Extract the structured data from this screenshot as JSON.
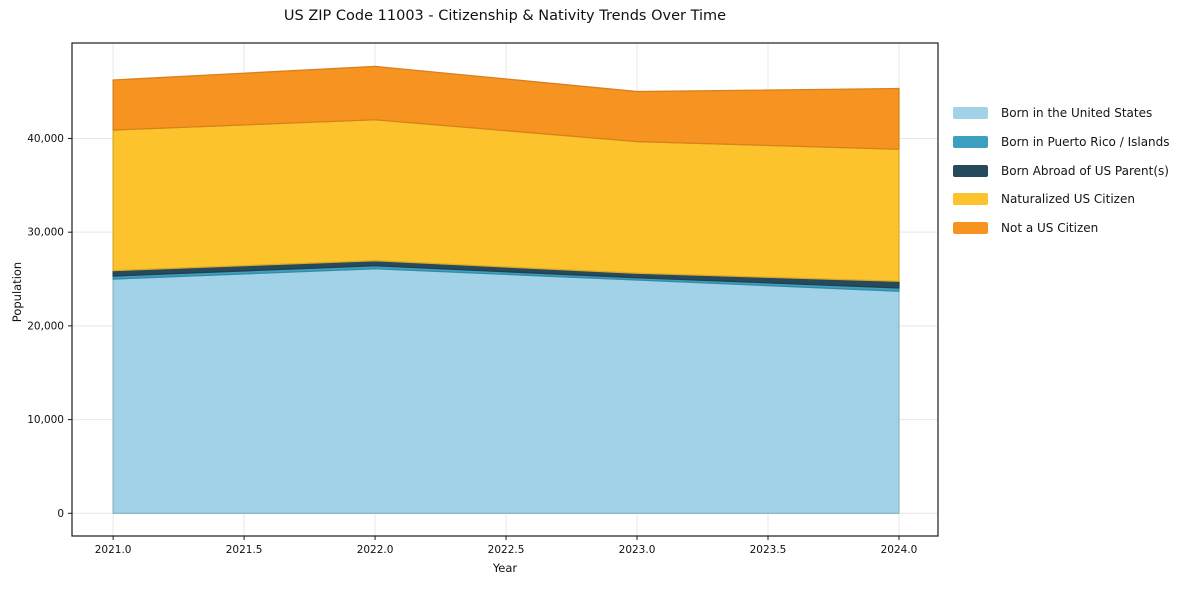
{
  "figure": {
    "background_color": "#ffffff",
    "spine_color": "#1c1c1c",
    "grid_color": "#e7e7e7",
    "text_color": "#111111"
  },
  "chart_data": {
    "type": "area",
    "stacked": true,
    "title": "US ZIP Code 11003 - Citizenship & Nativity Trends Over Time",
    "xlabel": "Year",
    "ylabel": "Population",
    "x": [
      2021,
      2022,
      2023,
      2024
    ],
    "series": [
      {
        "name": "Born in the United States",
        "color": "#a2d2e7",
        "values": [
          25000,
          26100,
          24900,
          23700
        ]
      },
      {
        "name": "Born in Puerto Rico / Islands",
        "color": "#3da0bf",
        "values": [
          320,
          320,
          240,
          350
        ]
      },
      {
        "name": "Born Abroad of US Parent(s)",
        "color": "#26495c",
        "values": [
          580,
          540,
          480,
          710
        ]
      },
      {
        "name": "Naturalized US Citizen",
        "color": "#fcc32d",
        "values": [
          15000,
          15040,
          14050,
          14090
        ]
      },
      {
        "name": "Not a US Citizen",
        "color": "#f79421",
        "values": [
          5340,
          5690,
          5340,
          6480
        ]
      }
    ],
    "totals": [
      46240,
      47690,
      45010,
      45330
    ],
    "xlim": [
      2020.843,
      2024.149
    ],
    "ylim": [
      -2423,
      50190
    ],
    "xticks": [
      2021.0,
      2021.5,
      2022.0,
      2022.5,
      2023.0,
      2023.5,
      2024.0
    ],
    "xtick_labels": [
      "2021.0",
      "2021.5",
      "2022.0",
      "2022.5",
      "2023.0",
      "2023.5",
      "2024.0"
    ],
    "yticks": [
      0,
      10000,
      20000,
      30000,
      40000
    ],
    "ytick_labels": [
      "0",
      "10,000",
      "20,000",
      "30,000",
      "40,000"
    ],
    "grid": true,
    "legend_position": "right-outside"
  }
}
